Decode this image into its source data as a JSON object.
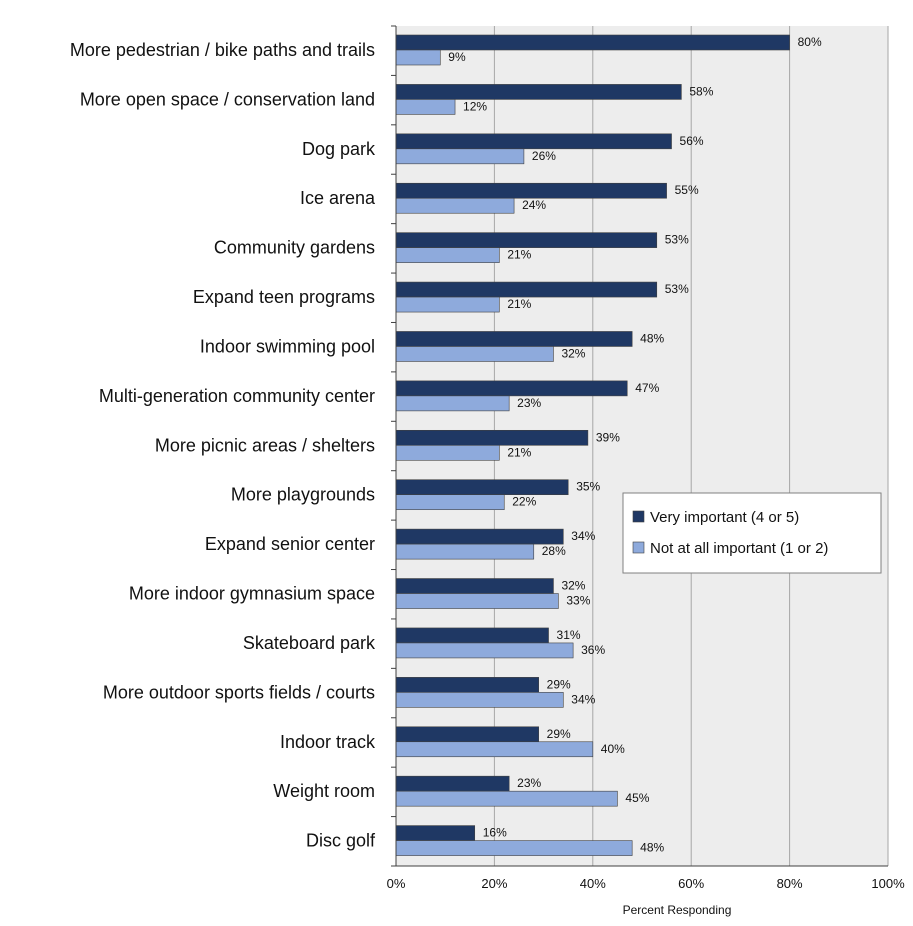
{
  "chart_data": {
    "type": "bar",
    "orientation": "horizontal",
    "categories": [
      "More pedestrian / bike paths and trails",
      "More open space / conservation land",
      "Dog park",
      "Ice arena",
      "Community gardens",
      "Expand teen programs",
      "Indoor swimming pool",
      "Multi-generation community center",
      "More picnic areas / shelters",
      "More playgrounds",
      "Expand senior center",
      "More indoor gymnasium space",
      "Skateboard park",
      "More outdoor sports fields / courts",
      "Indoor track",
      "Weight room",
      "Disc golf"
    ],
    "series": [
      {
        "name": "Very important (4 or 5)",
        "color": "#1f3864",
        "values": [
          80,
          58,
          56,
          55,
          53,
          53,
          48,
          47,
          39,
          35,
          34,
          32,
          31,
          29,
          29,
          23,
          16
        ],
        "labels": [
          "80%",
          "58%",
          "56%",
          "55%",
          "53%",
          "53%",
          "48%",
          "47%",
          "39%",
          "35%",
          "34%",
          "32%",
          "31%",
          "29%",
          "29%",
          "23%",
          "16%"
        ]
      },
      {
        "name": "Not at all important (1 or 2)",
        "color": "#8eaadc",
        "values": [
          9,
          12,
          26,
          24,
          21,
          21,
          32,
          23,
          21,
          22,
          28,
          33,
          36,
          34,
          40,
          45,
          48
        ],
        "labels": [
          "9%",
          "12%",
          "26%",
          "24%",
          "21%",
          "21%",
          "32%",
          "23%",
          "21%",
          "22%",
          "28%",
          "33%",
          "36%",
          "34%",
          "40%",
          "45%",
          "48%"
        ]
      }
    ],
    "xlim": [
      0,
      100
    ],
    "xticks": [
      0,
      20,
      40,
      60,
      80,
      100
    ],
    "xtick_labels": [
      "0%",
      "20%",
      "40%",
      "60%",
      "80%",
      "100%"
    ],
    "xlabel": "Percent Responding",
    "grid": true,
    "legend_position": "right"
  }
}
